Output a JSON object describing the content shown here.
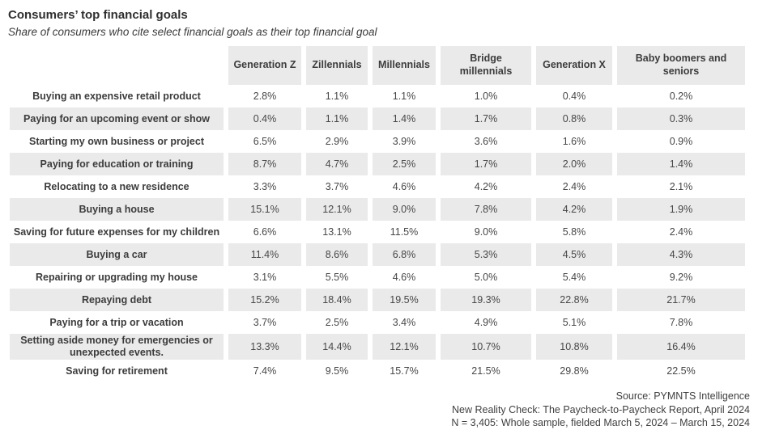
{
  "header": {
    "title": "Consumers’ top financial goals",
    "subtitle": "Share of consumers who cite select financial goals as their top financial goal"
  },
  "table": {
    "columns": [
      "Generation Z",
      "Zillennials",
      "Millennials",
      "Bridge millennials",
      "Generation X",
      "Baby boomers and seniors"
    ],
    "rows": [
      {
        "label": "Buying an expensive retail product",
        "values": [
          "2.8%",
          "1.1%",
          "1.1%",
          "1.0%",
          "0.4%",
          "0.2%"
        ]
      },
      {
        "label": "Paying for an upcoming event or show",
        "values": [
          "0.4%",
          "1.1%",
          "1.4%",
          "1.7%",
          "0.8%",
          "0.3%"
        ]
      },
      {
        "label": "Starting my own business or project",
        "values": [
          "6.5%",
          "2.9%",
          "3.9%",
          "3.6%",
          "1.6%",
          "0.9%"
        ]
      },
      {
        "label": "Paying for education or training",
        "values": [
          "8.7%",
          "4.7%",
          "2.5%",
          "1.7%",
          "2.0%",
          "1.4%"
        ]
      },
      {
        "label": "Relocating to a new residence",
        "values": [
          "3.3%",
          "3.7%",
          "4.6%",
          "4.2%",
          "2.4%",
          "2.1%"
        ]
      },
      {
        "label": "Buying a house",
        "values": [
          "15.1%",
          "12.1%",
          "9.0%",
          "7.8%",
          "4.2%",
          "1.9%"
        ]
      },
      {
        "label": "Saving for future expenses for my children",
        "values": [
          "6.6%",
          "13.1%",
          "11.5%",
          "9.0%",
          "5.8%",
          "2.4%"
        ]
      },
      {
        "label": "Buying a car",
        "values": [
          "11.4%",
          "8.6%",
          "6.8%",
          "5.3%",
          "4.5%",
          "4.3%"
        ]
      },
      {
        "label": "Repairing or upgrading my house",
        "values": [
          "3.1%",
          "5.5%",
          "4.6%",
          "5.0%",
          "5.4%",
          "9.2%"
        ]
      },
      {
        "label": "Repaying debt",
        "values": [
          "15.2%",
          "18.4%",
          "19.5%",
          "19.3%",
          "22.8%",
          "21.7%"
        ]
      },
      {
        "label": "Paying for a trip or vacation",
        "values": [
          "3.7%",
          "2.5%",
          "3.4%",
          "4.9%",
          "5.1%",
          "7.8%"
        ]
      },
      {
        "label": "Setting aside money for emergencies or unexpected events.",
        "values": [
          "13.3%",
          "14.4%",
          "12.1%",
          "10.7%",
          "10.8%",
          "16.4%"
        ]
      },
      {
        "label": "Saving for retirement",
        "values": [
          "7.4%",
          "9.5%",
          "15.7%",
          "21.5%",
          "29.8%",
          "22.5%"
        ]
      }
    ]
  },
  "footer": {
    "lines": [
      "Source: PYMNTS Intelligence",
      "New Reality Check: The Paycheck-to-Paycheck Report, April 2024",
      "N = 3,405: Whole sample, fielded March 5, 2024 – March 15, 2024"
    ]
  },
  "colors": {
    "stripe": "#EAEAEA",
    "text": "#3F3F3F",
    "background": "#FFFFFF"
  },
  "chart_data": {
    "type": "table",
    "title": "Consumers’ top financial goals",
    "subtitle": "Share of consumers who cite select financial goals as their top financial goal",
    "unit": "percent",
    "categories": [
      "Generation Z",
      "Zillennials",
      "Millennials",
      "Bridge millennials",
      "Generation X",
      "Baby boomers and seniors"
    ],
    "series": [
      {
        "name": "Buying an expensive retail product",
        "values": [
          2.8,
          1.1,
          1.1,
          1.0,
          0.4,
          0.2
        ]
      },
      {
        "name": "Paying for an upcoming event or show",
        "values": [
          0.4,
          1.1,
          1.4,
          1.7,
          0.8,
          0.3
        ]
      },
      {
        "name": "Starting my own business or project",
        "values": [
          6.5,
          2.9,
          3.9,
          3.6,
          1.6,
          0.9
        ]
      },
      {
        "name": "Paying for education or training",
        "values": [
          8.7,
          4.7,
          2.5,
          1.7,
          2.0,
          1.4
        ]
      },
      {
        "name": "Relocating to a new residence",
        "values": [
          3.3,
          3.7,
          4.6,
          4.2,
          2.4,
          2.1
        ]
      },
      {
        "name": "Buying a house",
        "values": [
          15.1,
          12.1,
          9.0,
          7.8,
          4.2,
          1.9
        ]
      },
      {
        "name": "Saving for future expenses for my children",
        "values": [
          6.6,
          13.1,
          11.5,
          9.0,
          5.8,
          2.4
        ]
      },
      {
        "name": "Buying a car",
        "values": [
          11.4,
          8.6,
          6.8,
          5.3,
          4.5,
          4.3
        ]
      },
      {
        "name": "Repairing or upgrading my house",
        "values": [
          3.1,
          5.5,
          4.6,
          5.0,
          5.4,
          9.2
        ]
      },
      {
        "name": "Repaying debt",
        "values": [
          15.2,
          18.4,
          19.5,
          19.3,
          22.8,
          21.7
        ]
      },
      {
        "name": "Paying for a trip or vacation",
        "values": [
          3.7,
          2.5,
          3.4,
          4.9,
          5.1,
          7.8
        ]
      },
      {
        "name": "Setting aside money for emergencies or unexpected events.",
        "values": [
          13.3,
          14.4,
          12.1,
          10.7,
          10.8,
          16.4
        ]
      },
      {
        "name": "Saving for retirement",
        "values": [
          7.4,
          9.5,
          15.7,
          21.5,
          29.8,
          22.5
        ]
      }
    ],
    "source": "Source: PYMNTS Intelligence; New Reality Check: The Paycheck-to-Paycheck Report, April 2024; N = 3,405: Whole sample, fielded March 5, 2024 – March 15, 2024"
  }
}
